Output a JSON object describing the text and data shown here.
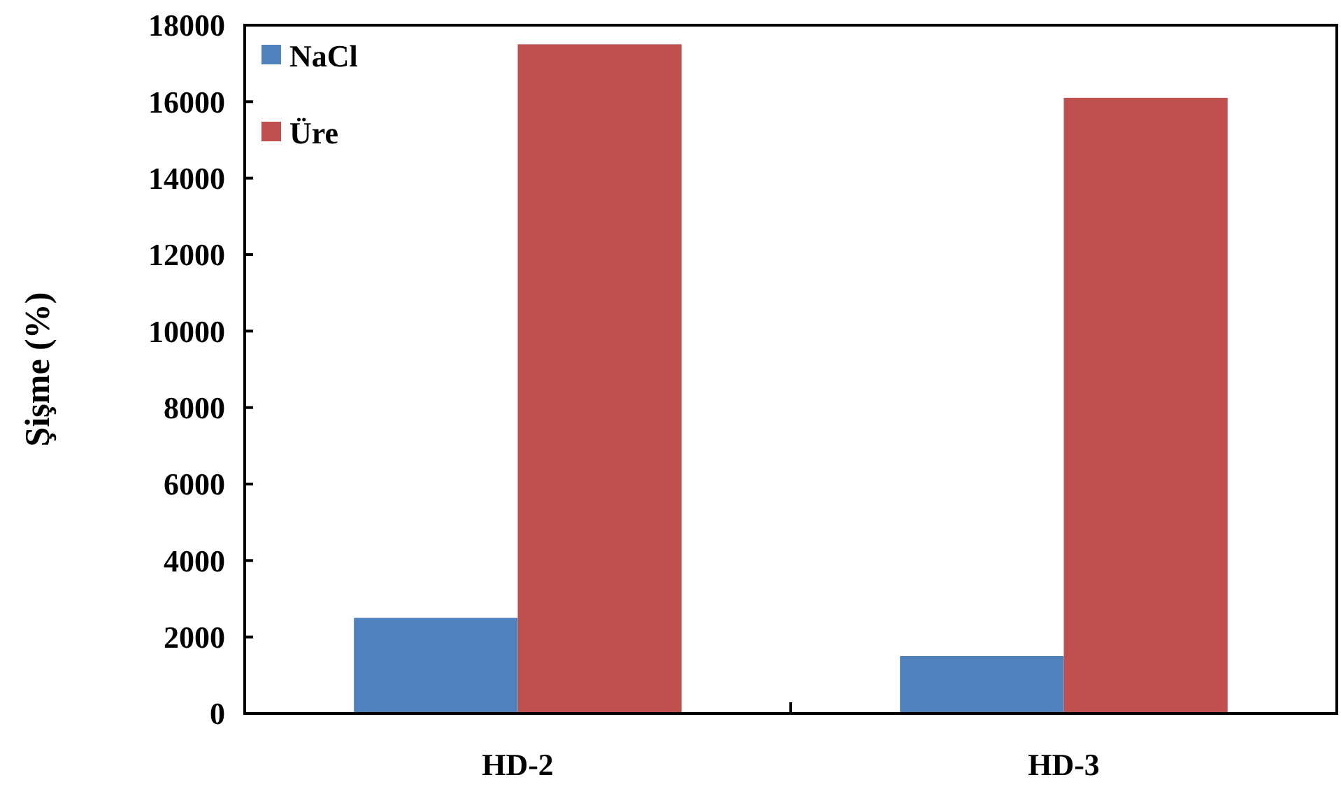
{
  "chart_data": {
    "type": "bar",
    "ylabel": "Şişme  (%)",
    "categories": [
      "HD-2",
      "HD-3"
    ],
    "series": [
      {
        "name": "NaCl",
        "color": "#4f81bd",
        "values": [
          2500,
          1500
        ]
      },
      {
        "name": "Üre",
        "color": "#c0504d",
        "values": [
          17500,
          16100
        ]
      }
    ],
    "ylim": [
      0,
      18000
    ],
    "yticks": [
      0,
      2000,
      4000,
      6000,
      8000,
      10000,
      12000,
      14000,
      16000,
      18000
    ],
    "grid": false,
    "legend": "top left"
  }
}
